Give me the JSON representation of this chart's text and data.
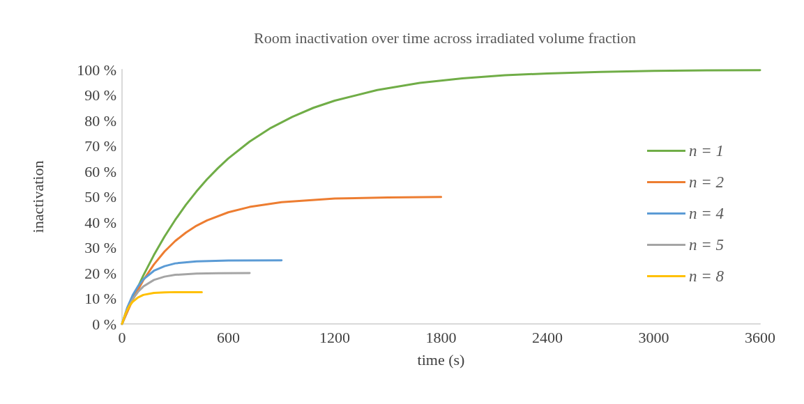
{
  "chart_data": {
    "type": "line",
    "title": "Room inactivation over time across irradiated volume fraction",
    "xlabel": "time (s)",
    "ylabel": "inactivation",
    "xlim": [
      0,
      3600
    ],
    "xticks": [
      0,
      600,
      1200,
      1800,
      2400,
      3000,
      3600
    ],
    "ylim": [
      0,
      100
    ],
    "yticks": [
      {
        "value": 0,
        "label": "0 %"
      },
      {
        "value": 10,
        "label": "10 %"
      },
      {
        "value": 20,
        "label": "20 %"
      },
      {
        "value": 30,
        "label": "30 %"
      },
      {
        "value": 40,
        "label": "40 %"
      },
      {
        "value": 50,
        "label": "50 %"
      },
      {
        "value": 60,
        "label": "60 %"
      },
      {
        "value": 70,
        "label": "70 %"
      },
      {
        "value": 80,
        "label": "80 %"
      },
      {
        "value": 90,
        "label": "90 %"
      },
      {
        "value": 100,
        "label": "100 %"
      }
    ],
    "grid": false,
    "legend": "right",
    "marker": "none",
    "line_style": "solid",
    "series": [
      {
        "name": "n = 1",
        "color": "#70ad47",
        "x": [
          0,
          60,
          120,
          180,
          240,
          300,
          360,
          420,
          480,
          540,
          600,
          720,
          840,
          960,
          1080,
          1200,
          1440,
          1680,
          1920,
          2160,
          2400,
          2700,
          3000,
          3300,
          3600
        ],
        "values": [
          0,
          10,
          19,
          27.1,
          34.4,
          40.9,
          46.8,
          52.1,
          56.9,
          61.2,
          65.1,
          71.7,
          77.1,
          81.4,
          85,
          87.8,
          92,
          94.8,
          96.6,
          97.8,
          98.5,
          99.1,
          99.5,
          99.7,
          99.8
        ]
      },
      {
        "name": "n = 2",
        "color": "#ed7d31",
        "x": [
          0,
          60,
          120,
          180,
          240,
          300,
          360,
          420,
          480,
          600,
          720,
          900,
          1200,
          1500,
          1800
        ],
        "values": [
          0,
          9.5,
          17.2,
          23.4,
          28.5,
          32.6,
          35.9,
          38.6,
          40.7,
          43.9,
          46,
          47.9,
          49.3,
          49.7,
          49.9
        ]
      },
      {
        "name": "n = 4",
        "color": "#5b9bd5",
        "x": [
          0,
          30,
          60,
          90,
          120,
          180,
          240,
          300,
          420,
          600,
          900
        ],
        "values": [
          0,
          6.5,
          11.3,
          14.8,
          17.5,
          20.9,
          22.7,
          23.8,
          24.6,
          24.9,
          25
        ]
      },
      {
        "name": "n = 5",
        "color": "#a5a5a5",
        "x": [
          0,
          30,
          60,
          90,
          120,
          180,
          240,
          300,
          420,
          540,
          720
        ],
        "values": [
          0,
          5.7,
          9.7,
          12.6,
          14.7,
          17.3,
          18.6,
          19.3,
          19.8,
          19.9,
          20
        ]
      },
      {
        "name": "n = 8",
        "color": "#ffc000",
        "x": [
          0,
          20,
          40,
          60,
          90,
          120,
          180,
          240,
          300,
          450
        ],
        "values": [
          0,
          4.1,
          6.9,
          8.7,
          10.4,
          11.4,
          12.2,
          12.4,
          12.5,
          12.5
        ]
      }
    ]
  }
}
